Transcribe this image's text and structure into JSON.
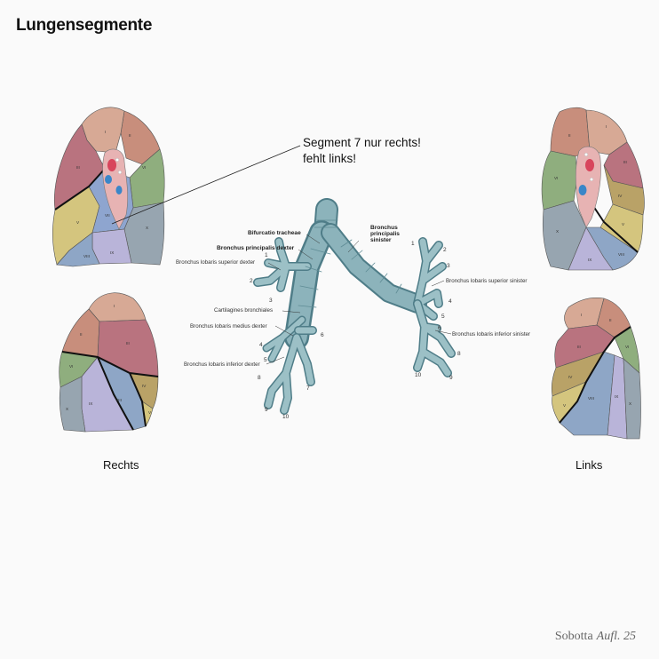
{
  "title": "Lungensegmente",
  "callout": {
    "line1": "Segment 7 nur rechts!",
    "line2": "fehlt links!"
  },
  "labels": {
    "right": "Rechts",
    "left": "Links"
  },
  "footer": {
    "publisher": "Sobotta",
    "edition": "Aufl. 25"
  },
  "bronchi": {
    "bifurcatio": "Bifurcatio tracheae",
    "principalis_dexter": "Bronchus principalis dexter",
    "principalis_sinister_1": "Bronchus",
    "principalis_sinister_2": "principalis",
    "principalis_sinister_3": "sinister",
    "lobaris_superior_dexter": "Bronchus lobaris superior dexter",
    "cartilagines": "Cartilagines bronchiales",
    "lobaris_medius_dexter": "Bronchus lobaris medius dexter",
    "lobaris_inferior_dexter": "Bronchus lobaris inferior dexter",
    "lobaris_superior_sinister": "Bronchus lobaris superior sinister",
    "lobaris_inferior_sinister": "Bronchus lobaris inferior sinister"
  },
  "segment_numbers": {
    "r1": "1",
    "r2": "2",
    "r3": "3",
    "r4": "4",
    "r5": "5",
    "r6": "6",
    "r7": "7",
    "r8": "8",
    "r9": "9",
    "r10": "10",
    "l1": "1",
    "l2": "2",
    "l3": "3",
    "l4": "4",
    "l5": "5",
    "l6": "6",
    "l8": "8",
    "l9": "9",
    "l10": "10"
  },
  "roman": {
    "I": "I",
    "II": "II",
    "III": "III",
    "IV": "IV",
    "V": "V",
    "VI": "VI",
    "VII": "VII",
    "VIII": "VIII",
    "IX": "IX",
    "X": "X"
  },
  "colors": {
    "seg1": "#d7a995",
    "seg2": "#c88e7c",
    "seg3": "#b9737f",
    "seg4": "#b9a267",
    "seg5": "#d4c57e",
    "seg6": "#8fae7e",
    "seg7": "#8ea5cf",
    "seg8": "#8ea6c6",
    "seg9": "#b9b4d9",
    "seg10": "#97a5b0",
    "bronchus": "#7fa7b0"
  }
}
